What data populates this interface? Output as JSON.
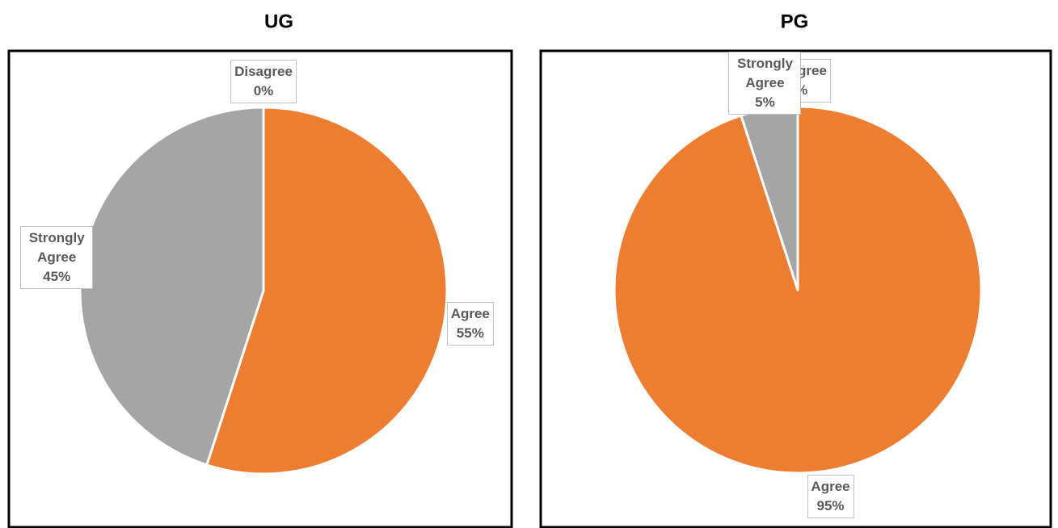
{
  "chart_data": [
    {
      "type": "pie",
      "title": "UG",
      "categories": [
        "Disagree",
        "Agree",
        "Strongly Agree"
      ],
      "values": [
        0,
        55,
        45
      ],
      "value_labels": [
        "0%",
        "55%",
        "45%"
      ],
      "colors": [
        "#4472c4",
        "#ed7d31",
        "#a5a5a5"
      ]
    },
    {
      "type": "pie",
      "title": "PG",
      "categories": [
        "Disagree",
        "Agree",
        "Strongly Agree"
      ],
      "values": [
        0,
        95,
        5
      ],
      "value_labels": [
        "0%",
        "95%",
        "5%"
      ],
      "colors": [
        "#4472c4",
        "#ed7d31",
        "#a5a5a5"
      ]
    }
  ]
}
